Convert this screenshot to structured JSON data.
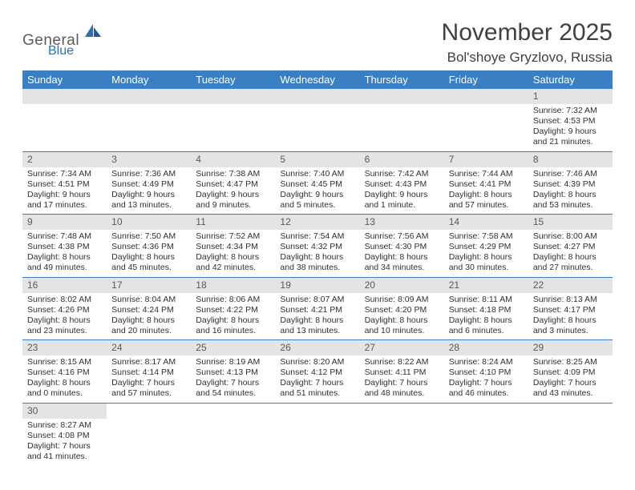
{
  "logo": {
    "word1": "General",
    "word2": "Blue"
  },
  "title": "November 2025",
  "location": "Bol'shoye Gryzlovo, Russia",
  "colors": {
    "header_bg": "#3a7fc4",
    "header_text": "#ffffff",
    "daynum_bg": "#e4e4e4",
    "daynum_text": "#595959",
    "rule": "#3a7fc4",
    "logo_gray": "#5a5a5a",
    "logo_blue": "#2a6fb5",
    "body_text": "#303030",
    "title_text": "#404040"
  },
  "weekdays": [
    "Sunday",
    "Monday",
    "Tuesday",
    "Wednesday",
    "Thursday",
    "Friday",
    "Saturday"
  ],
  "cells": [
    {
      "n": "",
      "sr": "",
      "ss": "",
      "dl": ""
    },
    {
      "n": "",
      "sr": "",
      "ss": "",
      "dl": ""
    },
    {
      "n": "",
      "sr": "",
      "ss": "",
      "dl": ""
    },
    {
      "n": "",
      "sr": "",
      "ss": "",
      "dl": ""
    },
    {
      "n": "",
      "sr": "",
      "ss": "",
      "dl": ""
    },
    {
      "n": "",
      "sr": "",
      "ss": "",
      "dl": ""
    },
    {
      "n": "1",
      "sr": "Sunrise: 7:32 AM",
      "ss": "Sunset: 4:53 PM",
      "dl": "Daylight: 9 hours and 21 minutes."
    },
    {
      "n": "2",
      "sr": "Sunrise: 7:34 AM",
      "ss": "Sunset: 4:51 PM",
      "dl": "Daylight: 9 hours and 17 minutes."
    },
    {
      "n": "3",
      "sr": "Sunrise: 7:36 AM",
      "ss": "Sunset: 4:49 PM",
      "dl": "Daylight: 9 hours and 13 minutes."
    },
    {
      "n": "4",
      "sr": "Sunrise: 7:38 AM",
      "ss": "Sunset: 4:47 PM",
      "dl": "Daylight: 9 hours and 9 minutes."
    },
    {
      "n": "5",
      "sr": "Sunrise: 7:40 AM",
      "ss": "Sunset: 4:45 PM",
      "dl": "Daylight: 9 hours and 5 minutes."
    },
    {
      "n": "6",
      "sr": "Sunrise: 7:42 AM",
      "ss": "Sunset: 4:43 PM",
      "dl": "Daylight: 9 hours and 1 minute."
    },
    {
      "n": "7",
      "sr": "Sunrise: 7:44 AM",
      "ss": "Sunset: 4:41 PM",
      "dl": "Daylight: 8 hours and 57 minutes."
    },
    {
      "n": "8",
      "sr": "Sunrise: 7:46 AM",
      "ss": "Sunset: 4:39 PM",
      "dl": "Daylight: 8 hours and 53 minutes."
    },
    {
      "n": "9",
      "sr": "Sunrise: 7:48 AM",
      "ss": "Sunset: 4:38 PM",
      "dl": "Daylight: 8 hours and 49 minutes."
    },
    {
      "n": "10",
      "sr": "Sunrise: 7:50 AM",
      "ss": "Sunset: 4:36 PM",
      "dl": "Daylight: 8 hours and 45 minutes."
    },
    {
      "n": "11",
      "sr": "Sunrise: 7:52 AM",
      "ss": "Sunset: 4:34 PM",
      "dl": "Daylight: 8 hours and 42 minutes."
    },
    {
      "n": "12",
      "sr": "Sunrise: 7:54 AM",
      "ss": "Sunset: 4:32 PM",
      "dl": "Daylight: 8 hours and 38 minutes."
    },
    {
      "n": "13",
      "sr": "Sunrise: 7:56 AM",
      "ss": "Sunset: 4:30 PM",
      "dl": "Daylight: 8 hours and 34 minutes."
    },
    {
      "n": "14",
      "sr": "Sunrise: 7:58 AM",
      "ss": "Sunset: 4:29 PM",
      "dl": "Daylight: 8 hours and 30 minutes."
    },
    {
      "n": "15",
      "sr": "Sunrise: 8:00 AM",
      "ss": "Sunset: 4:27 PM",
      "dl": "Daylight: 8 hours and 27 minutes."
    },
    {
      "n": "16",
      "sr": "Sunrise: 8:02 AM",
      "ss": "Sunset: 4:26 PM",
      "dl": "Daylight: 8 hours and 23 minutes."
    },
    {
      "n": "17",
      "sr": "Sunrise: 8:04 AM",
      "ss": "Sunset: 4:24 PM",
      "dl": "Daylight: 8 hours and 20 minutes."
    },
    {
      "n": "18",
      "sr": "Sunrise: 8:06 AM",
      "ss": "Sunset: 4:22 PM",
      "dl": "Daylight: 8 hours and 16 minutes."
    },
    {
      "n": "19",
      "sr": "Sunrise: 8:07 AM",
      "ss": "Sunset: 4:21 PM",
      "dl": "Daylight: 8 hours and 13 minutes."
    },
    {
      "n": "20",
      "sr": "Sunrise: 8:09 AM",
      "ss": "Sunset: 4:20 PM",
      "dl": "Daylight: 8 hours and 10 minutes."
    },
    {
      "n": "21",
      "sr": "Sunrise: 8:11 AM",
      "ss": "Sunset: 4:18 PM",
      "dl": "Daylight: 8 hours and 6 minutes."
    },
    {
      "n": "22",
      "sr": "Sunrise: 8:13 AM",
      "ss": "Sunset: 4:17 PM",
      "dl": "Daylight: 8 hours and 3 minutes."
    },
    {
      "n": "23",
      "sr": "Sunrise: 8:15 AM",
      "ss": "Sunset: 4:16 PM",
      "dl": "Daylight: 8 hours and 0 minutes."
    },
    {
      "n": "24",
      "sr": "Sunrise: 8:17 AM",
      "ss": "Sunset: 4:14 PM",
      "dl": "Daylight: 7 hours and 57 minutes."
    },
    {
      "n": "25",
      "sr": "Sunrise: 8:19 AM",
      "ss": "Sunset: 4:13 PM",
      "dl": "Daylight: 7 hours and 54 minutes."
    },
    {
      "n": "26",
      "sr": "Sunrise: 8:20 AM",
      "ss": "Sunset: 4:12 PM",
      "dl": "Daylight: 7 hours and 51 minutes."
    },
    {
      "n": "27",
      "sr": "Sunrise: 8:22 AM",
      "ss": "Sunset: 4:11 PM",
      "dl": "Daylight: 7 hours and 48 minutes."
    },
    {
      "n": "28",
      "sr": "Sunrise: 8:24 AM",
      "ss": "Sunset: 4:10 PM",
      "dl": "Daylight: 7 hours and 46 minutes."
    },
    {
      "n": "29",
      "sr": "Sunrise: 8:25 AM",
      "ss": "Sunset: 4:09 PM",
      "dl": "Daylight: 7 hours and 43 minutes."
    },
    {
      "n": "30",
      "sr": "Sunrise: 8:27 AM",
      "ss": "Sunset: 4:08 PM",
      "dl": "Daylight: 7 hours and 41 minutes."
    },
    {
      "n": "",
      "sr": "",
      "ss": "",
      "dl": ""
    },
    {
      "n": "",
      "sr": "",
      "ss": "",
      "dl": ""
    },
    {
      "n": "",
      "sr": "",
      "ss": "",
      "dl": ""
    },
    {
      "n": "",
      "sr": "",
      "ss": "",
      "dl": ""
    },
    {
      "n": "",
      "sr": "",
      "ss": "",
      "dl": ""
    },
    {
      "n": "",
      "sr": "",
      "ss": "",
      "dl": ""
    }
  ]
}
